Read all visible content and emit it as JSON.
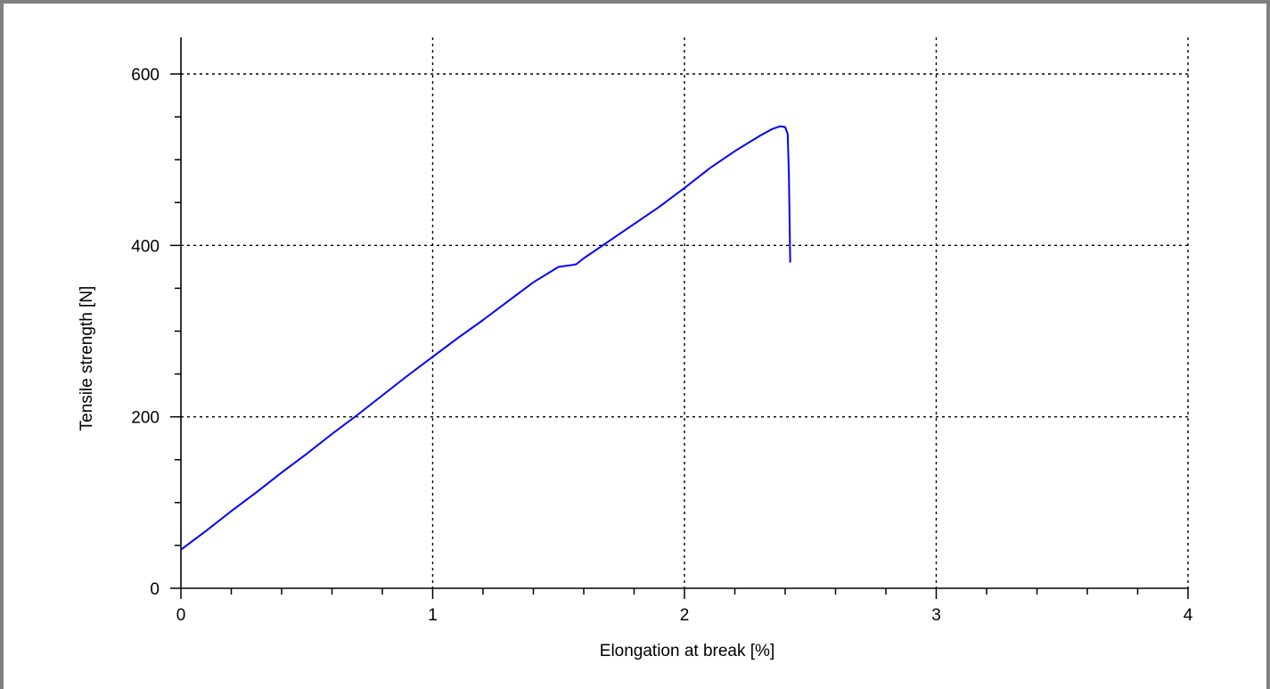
{
  "chart_data": {
    "type": "line",
    "xlabel": "Elongation at break [%]",
    "ylabel": "Tensile strength [N]",
    "xlim": [
      0,
      4
    ],
    "ylim": [
      0,
      600
    ],
    "xticks": [
      "0",
      "1",
      "2",
      "3",
      "4"
    ],
    "yticks": [
      "0",
      "200",
      "400",
      "600"
    ],
    "x_minor_step": 0.2,
    "y_minor_step": 50,
    "grid": true,
    "grid_style": "dotted",
    "legend": "none",
    "series": [
      {
        "color": "#0000ff",
        "points": [
          [
            0.0,
            45
          ],
          [
            0.1,
            67
          ],
          [
            0.2,
            90
          ],
          [
            0.3,
            112
          ],
          [
            0.4,
            135
          ],
          [
            0.5,
            157
          ],
          [
            0.6,
            180
          ],
          [
            0.7,
            202
          ],
          [
            0.8,
            225
          ],
          [
            0.9,
            248
          ],
          [
            1.0,
            270
          ],
          [
            1.1,
            292
          ],
          [
            1.2,
            313
          ],
          [
            1.3,
            335
          ],
          [
            1.4,
            357
          ],
          [
            1.5,
            375
          ],
          [
            1.55,
            377
          ],
          [
            1.57,
            378
          ],
          [
            1.6,
            385
          ],
          [
            1.7,
            405
          ],
          [
            1.8,
            425
          ],
          [
            1.9,
            445
          ],
          [
            2.0,
            467
          ],
          [
            2.1,
            490
          ],
          [
            2.2,
            510
          ],
          [
            2.3,
            528
          ],
          [
            2.35,
            536
          ],
          [
            2.38,
            539
          ],
          [
            2.4,
            538
          ],
          [
            2.41,
            530
          ],
          [
            2.415,
            480
          ],
          [
            2.42,
            380
          ]
        ]
      }
    ]
  }
}
